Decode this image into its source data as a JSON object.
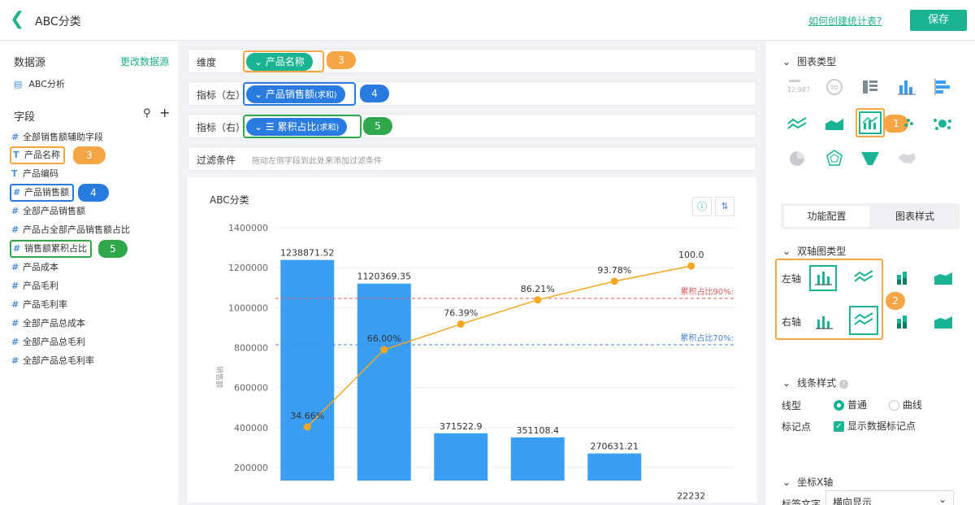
{
  "header": {
    "title": "ABC分类",
    "help_link": "如何创建统计表?",
    "save_label": "保存"
  },
  "left": {
    "datasource_label": "数据源",
    "change_label": "更改数据源",
    "dataset": "ABC分析",
    "fields_label": "字段",
    "fields": [
      {
        "type": "#",
        "name": "全部销售额辅助字段"
      },
      {
        "type": "T",
        "name": "产品名称"
      },
      {
        "type": "T",
        "name": "产品编码"
      },
      {
        "type": "#",
        "name": "产品销售额"
      },
      {
        "type": "#",
        "name": "全部产品销售额"
      },
      {
        "type": "#",
        "name": "产品占全部产品销售额占比"
      },
      {
        "type": "#",
        "name": "销售额累积占比"
      },
      {
        "type": "#",
        "name": "产品成本"
      },
      {
        "type": "#",
        "name": "产品毛利"
      },
      {
        "type": "#",
        "name": "产品毛利率"
      },
      {
        "type": "#",
        "name": "全部产品总成本"
      },
      {
        "type": "#",
        "name": "全部产品总毛利"
      },
      {
        "type": "#",
        "name": "全部产品总毛利率"
      }
    ]
  },
  "config": {
    "dimension_label": "维度",
    "dimension_value": "产品名称",
    "metric_left_label": "指标（左）",
    "metric_left_value": "产品销售额",
    "metric_left_agg": "(求和)",
    "metric_right_label": "指标（右）",
    "metric_right_value": "累积占比",
    "metric_right_agg": "(求和)",
    "filter_label": "过滤条件",
    "filter_placeholder": "拖动左侧字段到此处来添加过滤条件"
  },
  "badges": {
    "b1": "1",
    "b2": "2",
    "b3": "3",
    "b4": "4",
    "b5": "5"
  },
  "chart_data": {
    "type": "bar",
    "title": "ABC分类",
    "ylabel": "销售额",
    "ylim": [
      200000,
      1400000
    ],
    "yticks": [
      "1400000",
      "1200000",
      "1000000",
      "800000",
      "600000",
      "400000",
      "200000"
    ],
    "bar_values": [
      1238871.52,
      1120369.35,
      371522.9,
      351108.4,
      270631.21,
      22232
    ],
    "bar_labels": [
      "1238871.52",
      "1120369.35",
      "371522.9",
      "351108.4",
      "270631.21",
      "22232"
    ],
    "line_values": [
      34.66,
      66.0,
      76.39,
      86.21,
      93.78,
      100.0
    ],
    "line_labels": [
      "34.66%",
      "66.00%",
      "76.39%",
      "86.21%",
      "93.78%",
      "100.0"
    ],
    "ref_lines": [
      {
        "label": "累积占比90%:",
        "value": 90,
        "color": "#e05a5a"
      },
      {
        "label": "累积占比70%:",
        "value": 70,
        "color": "#4a7fd4"
      }
    ],
    "colors": {
      "bar": "#3a9ef5",
      "line": "#f5a623"
    }
  },
  "right": {
    "chart_type_label": "图表类型",
    "tab_func": "功能配置",
    "tab_style": "图表样式",
    "dual_label": "双轴图类型",
    "left_axis": "左轴",
    "right_axis": "右轴",
    "line_style_label": "线条样式",
    "line_type_label": "线型",
    "line_normal": "普通",
    "line_curve": "曲线",
    "marker_label": "标记点",
    "marker_show": "显示数据标记点",
    "xaxis_label": "坐标X轴",
    "label_text": "标签文字",
    "label_value": "横向显示",
    "kpi_text": "12,987",
    "kpi_circle": "TO"
  }
}
